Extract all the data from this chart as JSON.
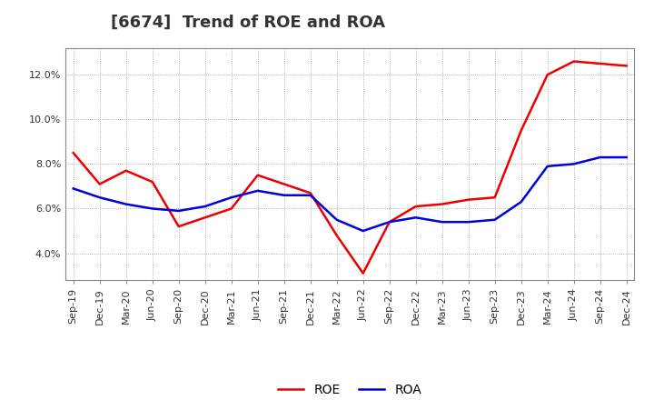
{
  "title": "[6674]  Trend of ROE and ROA",
  "labels": [
    "Sep-19",
    "Dec-19",
    "Mar-20",
    "Jun-20",
    "Sep-20",
    "Dec-20",
    "Mar-21",
    "Jun-21",
    "Sep-21",
    "Dec-21",
    "Mar-22",
    "Jun-22",
    "Sep-22",
    "Dec-22",
    "Mar-23",
    "Jun-23",
    "Sep-23",
    "Dec-23",
    "Mar-24",
    "Jun-24",
    "Sep-24",
    "Dec-24"
  ],
  "ROE": [
    8.5,
    7.1,
    7.7,
    7.2,
    5.2,
    5.6,
    6.0,
    7.5,
    7.1,
    6.7,
    4.8,
    3.1,
    5.4,
    6.1,
    6.2,
    6.4,
    6.5,
    9.5,
    12.0,
    12.6,
    12.5,
    12.4
  ],
  "ROA": [
    6.9,
    6.5,
    6.2,
    6.0,
    5.9,
    6.1,
    6.5,
    6.8,
    6.6,
    6.6,
    5.5,
    5.0,
    5.4,
    5.6,
    5.4,
    5.4,
    5.5,
    6.3,
    7.9,
    8.0,
    8.3,
    8.3
  ],
  "roe_color": "#EE0000",
  "roa_color": "#0000DD",
  "line_width": 1.8,
  "ylim": [
    2.8,
    13.2
  ],
  "yticks": [
    4.0,
    6.0,
    8.0,
    10.0,
    12.0
  ],
  "background_color": "#ffffff",
  "plot_bg_color": "#ffffff",
  "grid_color": "#999999",
  "title_fontsize": 13,
  "legend_fontsize": 10,
  "tick_fontsize": 8,
  "title_color": "#333333"
}
